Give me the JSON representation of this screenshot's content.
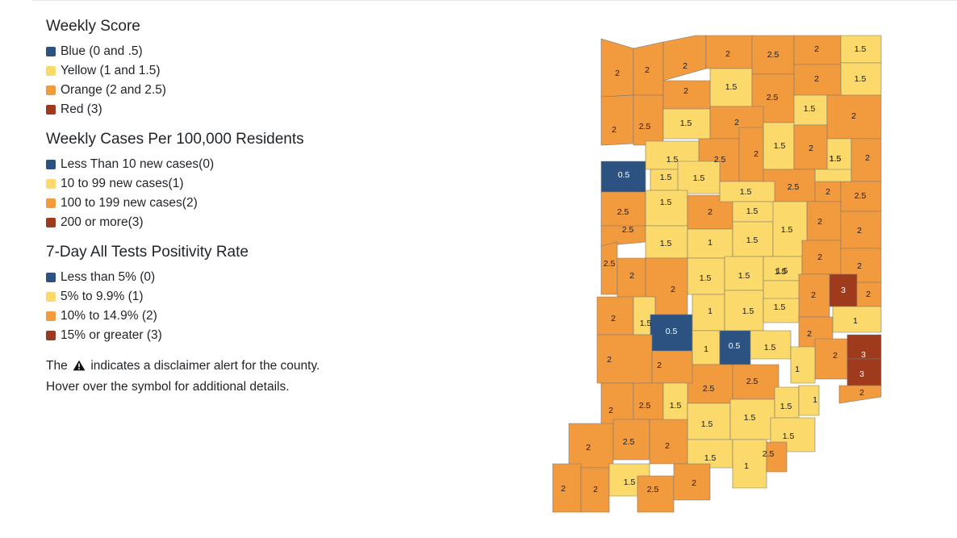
{
  "legend": {
    "sections": [
      {
        "title": "Weekly Score",
        "items": [
          {
            "label": "Blue (0 and .5)",
            "color": "#2c5282"
          },
          {
            "label": "Yellow (1 and 1.5)",
            "color": "#fbd96a"
          },
          {
            "label": "Orange (2 and 2.5)",
            "color": "#f19a3e"
          },
          {
            "label": "Red (3)",
            "color": "#a03a1c"
          }
        ]
      },
      {
        "title": "Weekly Cases Per 100,000 Residents",
        "items": [
          {
            "label": "Less Than 10 new cases(0)",
            "color": "#2c5282"
          },
          {
            "label": "10 to 99 new cases(1)",
            "color": "#fbd96a"
          },
          {
            "label": "100 to 199 new cases(2)",
            "color": "#f19a3e"
          },
          {
            "label": "200 or more(3)",
            "color": "#a03a1c"
          }
        ]
      },
      {
        "title": "7-Day All Tests Positivity Rate",
        "items": [
          {
            "label": "Less than 5% (0)",
            "color": "#2c5282"
          },
          {
            "label": "5% to 9.9% (1)",
            "color": "#fbd96a"
          },
          {
            "label": "10% to 14.9% (2)",
            "color": "#f19a3e"
          },
          {
            "label": "15% or greater (3)",
            "color": "#a03a1c"
          }
        ]
      }
    ],
    "note_before_icon": "The",
    "note_after_icon": "indicates a disclaimer alert for the county.",
    "note_line2": "Hover over the symbol for additional details.",
    "note_icon": "warning-triangle-icon"
  },
  "map": {
    "region": "Indiana counties",
    "score_colors": {
      "0.5": "#2c5282",
      "1": "#fbd96a",
      "1.5": "#fbd96a",
      "2": "#f19a3e",
      "2.5": "#f19a3e",
      "3": "#a03a1c"
    },
    "counties": [
      {
        "score": "2"
      },
      {
        "score": "2"
      },
      {
        "score": "2"
      },
      {
        "score": "2"
      },
      {
        "score": "2.5"
      },
      {
        "score": "2"
      },
      {
        "score": "1.5"
      },
      {
        "score": "2"
      },
      {
        "score": "1.5"
      },
      {
        "score": "2.5"
      },
      {
        "score": "1.5"
      },
      {
        "score": "2"
      },
      {
        "score": "1.5"
      },
      {
        "score": "2"
      },
      {
        "score": "2.5"
      },
      {
        "score": "1.5"
      },
      {
        "score": "2"
      },
      {
        "score": "1.5"
      },
      {
        "score": "2"
      },
      {
        "score": "1.5"
      },
      {
        "score": "2.5"
      },
      {
        "score": "2"
      },
      {
        "score": "1.5"
      },
      {
        "score": "2"
      },
      {
        "score": "1.5"
      },
      {
        "score": "2"
      },
      {
        "score": "0.5"
      },
      {
        "score": "1.5"
      },
      {
        "score": "1.5"
      },
      {
        "score": "2.5"
      },
      {
        "score": "2"
      },
      {
        "score": "2.5"
      },
      {
        "score": "1.5"
      },
      {
        "score": "2.5"
      },
      {
        "score": "2"
      },
      {
        "score": "1.5"
      },
      {
        "score": "1.5"
      },
      {
        "score": "2"
      },
      {
        "score": "2.5"
      },
      {
        "score": "1.5"
      },
      {
        "score": "1"
      },
      {
        "score": "1.5"
      },
      {
        "score": "2"
      },
      {
        "score": "1.5"
      },
      {
        "score": "2.5"
      },
      {
        "score": "2"
      },
      {
        "score": "1.5"
      },
      {
        "score": "1.5"
      },
      {
        "score": "1.5"
      },
      {
        "score": "2"
      },
      {
        "score": "2"
      },
      {
        "score": "2"
      },
      {
        "score": "1.5"
      },
      {
        "score": "3"
      },
      {
        "score": "2"
      },
      {
        "score": "2"
      },
      {
        "score": "2"
      },
      {
        "score": "1.5"
      },
      {
        "score": "0.5"
      },
      {
        "score": "1"
      },
      {
        "score": "1.5"
      },
      {
        "score": "1.5"
      },
      {
        "score": "1"
      },
      {
        "score": "2"
      },
      {
        "score": "1"
      },
      {
        "score": "0.5"
      },
      {
        "score": "1.5"
      },
      {
        "score": "2"
      },
      {
        "score": "3"
      },
      {
        "score": "2"
      },
      {
        "score": "1"
      },
      {
        "score": "3"
      },
      {
        "score": "2.5"
      },
      {
        "score": "2.5"
      },
      {
        "score": "2"
      },
      {
        "score": "2"
      },
      {
        "score": "2.5"
      },
      {
        "score": "1.5"
      },
      {
        "score": "1.5"
      },
      {
        "score": "1.5"
      },
      {
        "score": "1.5"
      },
      {
        "score": "1"
      },
      {
        "score": "2"
      },
      {
        "score": "2"
      },
      {
        "score": "2.5"
      },
      {
        "score": "2"
      },
      {
        "score": "1.5"
      },
      {
        "score": "1.5"
      },
      {
        "score": "1"
      },
      {
        "score": "2.5"
      },
      {
        "score": "2"
      },
      {
        "score": "2"
      },
      {
        "score": "1.5"
      },
      {
        "score": "2.5"
      },
      {
        "score": "2"
      },
      {
        "score": "2"
      },
      {
        "score": "2.5"
      },
      {
        "score": "2"
      }
    ]
  }
}
